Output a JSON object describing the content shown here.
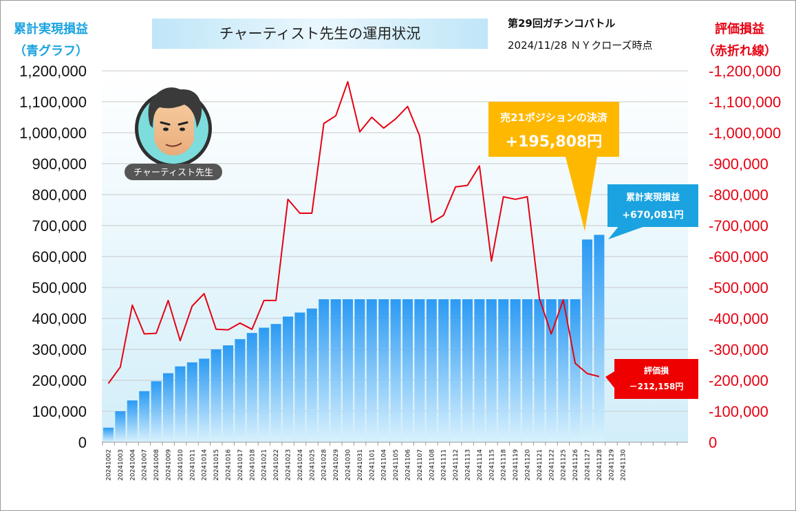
{
  "header": {
    "left_axis_title_1": "累計実現損益",
    "left_axis_title_2": "（青グラフ）",
    "title": "チャーティスト先生の運用状況",
    "battle": "第29回ガチンコバトル",
    "datetime": "2024/11/28  ＮＹクローズ時点",
    "right_axis_title_1": "評価損益",
    "right_axis_title_2": "（赤折れ線）"
  },
  "avatar": {
    "name": "チャーティスト先生"
  },
  "callouts": {
    "settlement_line1": "売21ポジションの決済",
    "settlement_line2": "+195,808円",
    "realized_line1": "累計実現損益",
    "realized_line2": "+670,081円",
    "unrealized_line1": "評価損",
    "unrealized_line2": "－212,158円"
  },
  "colors": {
    "bar_top": "#2b9af3",
    "bar_bottom": "#d8f1fd",
    "line": "#e60012",
    "plot_bg_top": "#ffffff",
    "plot_bg_bottom": "#d2eef9"
  },
  "chart_data": {
    "type": "bar",
    "categories": [
      "20241002",
      "20241003",
      "20241004",
      "20241007",
      "20241008",
      "20241009",
      "20241010",
      "20241011",
      "20241014",
      "20241015",
      "20241016",
      "20241017",
      "20241018",
      "20241021",
      "20241022",
      "20241023",
      "20241024",
      "20241025",
      "20241028",
      "20241029",
      "20241030",
      "20241031",
      "20241101",
      "20241104",
      "20241105",
      "20241106",
      "20241107",
      "20241108",
      "20241111",
      "20241112",
      "20241113",
      "20241114",
      "20241115",
      "20241118",
      "20241119",
      "20241120",
      "20241121",
      "20241122",
      "20241125",
      "20241126",
      "20241127",
      "20241128",
      "20241129",
      "20241130"
    ],
    "series": [
      {
        "name": "累計実現損益",
        "axis": "left",
        "type": "bar",
        "values": [
          47000,
          100000,
          135000,
          165000,
          197000,
          223000,
          245000,
          258000,
          270000,
          300000,
          313000,
          333000,
          353000,
          370000,
          382000,
          406000,
          419000,
          432000,
          462000,
          462000,
          462000,
          462000,
          462000,
          462000,
          462000,
          462000,
          462000,
          462000,
          462000,
          462000,
          462000,
          462000,
          462000,
          462000,
          462000,
          462000,
          462000,
          462000,
          462000,
          462000,
          655000,
          670081,
          null,
          null
        ]
      },
      {
        "name": "評価損益",
        "axis": "right",
        "type": "line",
        "values": [
          -190000,
          -243000,
          -443000,
          -350000,
          -352000,
          -458000,
          -328000,
          -440000,
          -480000,
          -365000,
          -363000,
          -385000,
          -365000,
          -458000,
          -458000,
          -785000,
          -740000,
          -740000,
          -1030000,
          -1055000,
          -1165000,
          -1003000,
          -1050000,
          -1015000,
          -1045000,
          -1085000,
          -990000,
          -710000,
          -733000,
          -825000,
          -830000,
          -893000,
          -585000,
          -793000,
          -785000,
          -793000,
          -465000,
          -350000,
          -460000,
          -255000,
          -222000,
          -212158,
          null,
          null
        ]
      }
    ],
    "left_axis": {
      "ylim": [
        0,
        1200000
      ],
      "ticks": [
        "0",
        "100,000",
        "200,000",
        "300,000",
        "400,000",
        "500,000",
        "600,000",
        "700,000",
        "800,000",
        "900,000",
        "1,000,000",
        "1,100,000",
        "1,200,000"
      ]
    },
    "right_axis": {
      "ylim": [
        0,
        -1200000
      ],
      "ticks": [
        "0",
        "-100,000",
        "-200,000",
        "-300,000",
        "-400,000",
        "-500,000",
        "-600,000",
        "-700,000",
        "-800,000",
        "-900,000",
        "-1,000,000",
        "-1,100,000",
        "-1,200,000"
      ]
    },
    "grid": true,
    "legend": "none"
  }
}
